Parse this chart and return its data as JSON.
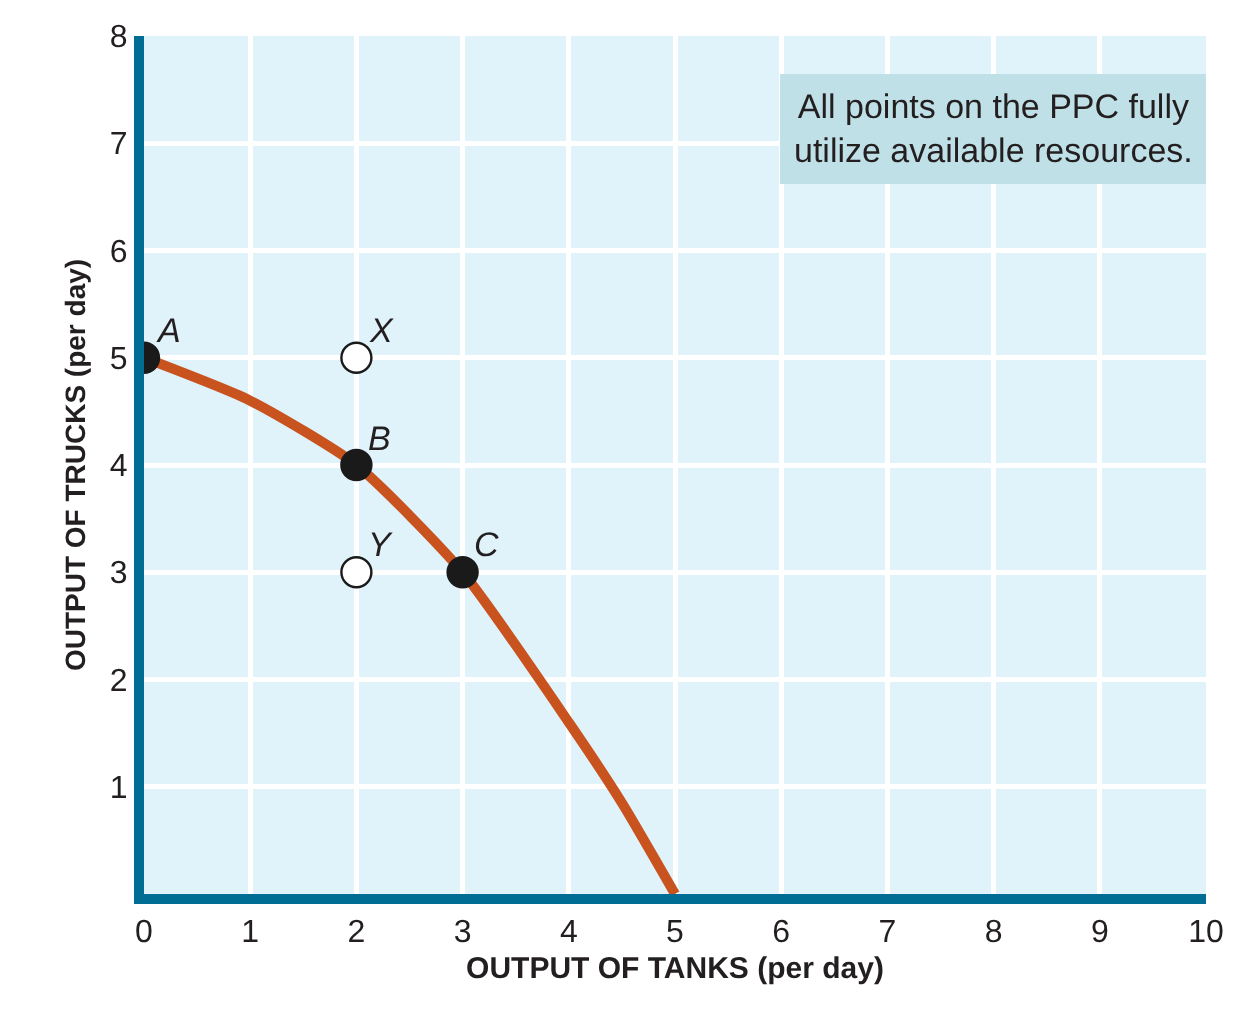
{
  "chart_data": {
    "type": "line",
    "xlabel": "OUTPUT OF TANKS (per day)",
    "ylabel": "OUTPUT OF TRUCKS (per day)",
    "xlim": [
      0,
      10
    ],
    "ylim": [
      0,
      8
    ],
    "xticks": [
      0,
      1,
      2,
      3,
      4,
      5,
      6,
      7,
      8,
      9,
      10
    ],
    "yticks": [
      1,
      2,
      3,
      4,
      5,
      6,
      7,
      8
    ],
    "grid": true,
    "line_style": "solid",
    "series": [
      {
        "marker": "none",
        "color": "#c9531e",
        "x": [
          0,
          1,
          2,
          3,
          4,
          4.5,
          5
        ],
        "values": [
          5,
          4.6,
          4,
          3,
          1.6,
          0.85,
          0
        ]
      },
      {
        "type": "scatter",
        "marker": "circle",
        "color": "#1a1a1a",
        "x": [
          0,
          2,
          3
        ],
        "values": [
          5,
          4,
          3
        ]
      },
      {
        "type": "scatter",
        "marker": "circle",
        "color": "#ffffff",
        "x": [
          2,
          2
        ],
        "values": [
          5,
          3
        ]
      }
    ],
    "annotations": [
      "All points on the PPC fully utilize available resources.",
      {
        "text": "A",
        "x": 0,
        "y": 5
      },
      {
        "text": "X",
        "x": 2,
        "y": 5
      },
      {
        "text": "B",
        "x": 2,
        "y": 4
      },
      {
        "text": "Y",
        "x": 2,
        "y": 3
      },
      {
        "text": "C",
        "x": 3,
        "y": 3
      }
    ]
  }
}
